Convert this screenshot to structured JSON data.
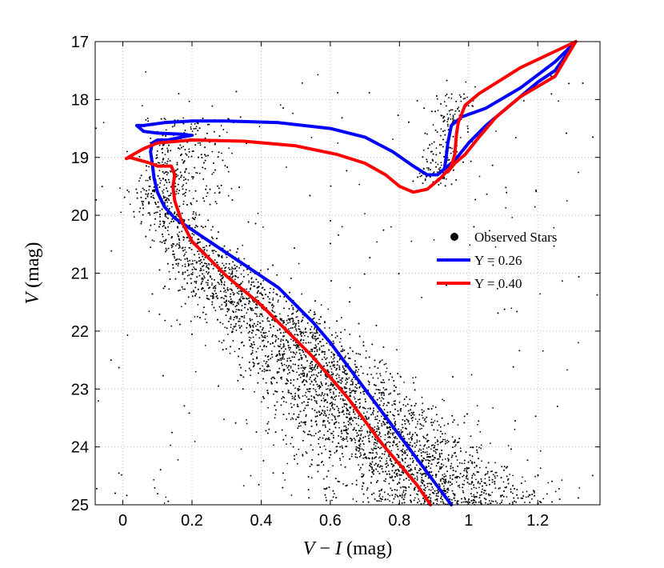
{
  "chart_data": {
    "type": "scatter",
    "title": "",
    "xlabel": "V − I (mag)",
    "ylabel": "V (mag)",
    "xlabel_parts": {
      "v": "V",
      "minus": " − ",
      "i": "I",
      "unit": " (mag)"
    },
    "ylabel_parts": {
      "v": "V",
      "unit": " (mag)"
    },
    "xlim": [
      -0.08,
      1.38
    ],
    "ylim": [
      25,
      17
    ],
    "y_inverted": true,
    "grid": true,
    "x_ticks": [
      0,
      0.2,
      0.4,
      0.6,
      0.8,
      1,
      1.2
    ],
    "x_tick_labels": [
      "0",
      "0.2",
      "0.4",
      "0.6",
      "0.8",
      "1",
      "1.2"
    ],
    "y_ticks": [
      17,
      18,
      19,
      20,
      21,
      22,
      23,
      24,
      25
    ],
    "y_tick_labels": [
      "17",
      "18",
      "19",
      "20",
      "21",
      "22",
      "23",
      "24",
      "25"
    ],
    "legend": {
      "position": "right",
      "entries": [
        {
          "label": "Observed Stars",
          "kind": "point",
          "color": "#000000"
        },
        {
          "label": "Y = 0.26",
          "kind": "line",
          "color": "#0000ff"
        },
        {
          "label": "Y = 0.40",
          "kind": "line",
          "color": "#ff0000"
        }
      ]
    },
    "scatter_series": {
      "name": "Observed Stars",
      "color": "#000000",
      "approx_count": 9000,
      "density_model": "main sequence ridge from (0.09, 19.7) to (0.95, 25.0), turn-off near (0.12, 18.8), red giant branch clump near (0.94, 18.9)"
    },
    "series": [
      {
        "name": "Y = 0.26",
        "color": "#0000ff",
        "x": [
          0.95,
          0.9,
          0.85,
          0.8,
          0.75,
          0.7,
          0.65,
          0.6,
          0.55,
          0.5,
          0.45,
          0.4,
          0.35,
          0.3,
          0.25,
          0.2,
          0.15,
          0.12,
          0.1,
          0.09,
          0.085,
          0.08,
          0.085,
          0.1,
          0.13,
          0.17,
          0.2,
          0.17,
          0.1,
          0.06,
          0.04,
          0.06,
          0.12,
          0.2,
          0.3,
          0.45,
          0.6,
          0.7,
          0.78,
          0.84,
          0.88,
          0.91,
          0.93,
          0.935,
          0.94,
          0.95,
          0.98,
          1.05,
          1.15,
          1.25,
          1.31,
          1.25,
          1.2,
          1.1,
          1.05,
          1.0,
          0.96,
          0.93
        ],
        "y": [
          25.0,
          24.6,
          24.2,
          23.8,
          23.4,
          23.0,
          22.6,
          22.2,
          21.85,
          21.55,
          21.25,
          21.05,
          20.85,
          20.65,
          20.45,
          20.25,
          20.05,
          19.85,
          19.6,
          19.35,
          19.1,
          18.9,
          18.75,
          18.7,
          18.7,
          18.65,
          18.62,
          18.6,
          18.58,
          18.55,
          18.45,
          18.45,
          18.4,
          18.37,
          18.37,
          18.4,
          18.5,
          18.65,
          18.9,
          19.15,
          19.3,
          19.3,
          19.2,
          19.0,
          18.75,
          18.45,
          18.3,
          18.15,
          17.8,
          17.35,
          17.0,
          17.5,
          17.7,
          18.2,
          18.45,
          18.75,
          19.05,
          19.2
        ]
      },
      {
        "name": "Y = 0.40",
        "color": "#ff0000",
        "x": [
          0.89,
          0.85,
          0.8,
          0.75,
          0.7,
          0.65,
          0.6,
          0.55,
          0.5,
          0.45,
          0.4,
          0.35,
          0.3,
          0.25,
          0.2,
          0.17,
          0.15,
          0.145,
          0.15,
          0.14,
          0.12,
          0.1,
          0.08,
          0.05,
          0.02,
          0.01,
          0.03,
          0.06,
          0.1,
          0.2,
          0.35,
          0.5,
          0.62,
          0.7,
          0.76,
          0.8,
          0.84,
          0.88,
          0.92,
          0.95,
          0.96,
          0.965,
          0.97,
          0.99,
          1.03,
          1.15,
          1.31,
          1.25,
          1.15,
          1.08,
          1.03,
          0.99,
          0.96,
          0.94
        ],
        "y": [
          25.0,
          24.65,
          24.3,
          23.95,
          23.55,
          23.15,
          22.8,
          22.45,
          22.15,
          21.85,
          21.55,
          21.3,
          21.05,
          20.75,
          20.45,
          20.1,
          19.75,
          19.5,
          19.3,
          19.15,
          19.15,
          19.15,
          19.1,
          19.05,
          19.0,
          19.02,
          18.95,
          18.85,
          18.75,
          18.7,
          18.72,
          18.8,
          18.95,
          19.1,
          19.3,
          19.5,
          19.6,
          19.55,
          19.35,
          19.15,
          18.95,
          18.6,
          18.4,
          18.1,
          17.9,
          17.45,
          17.0,
          17.6,
          17.95,
          18.3,
          18.65,
          18.95,
          19.1,
          19.25
        ]
      }
    ]
  }
}
